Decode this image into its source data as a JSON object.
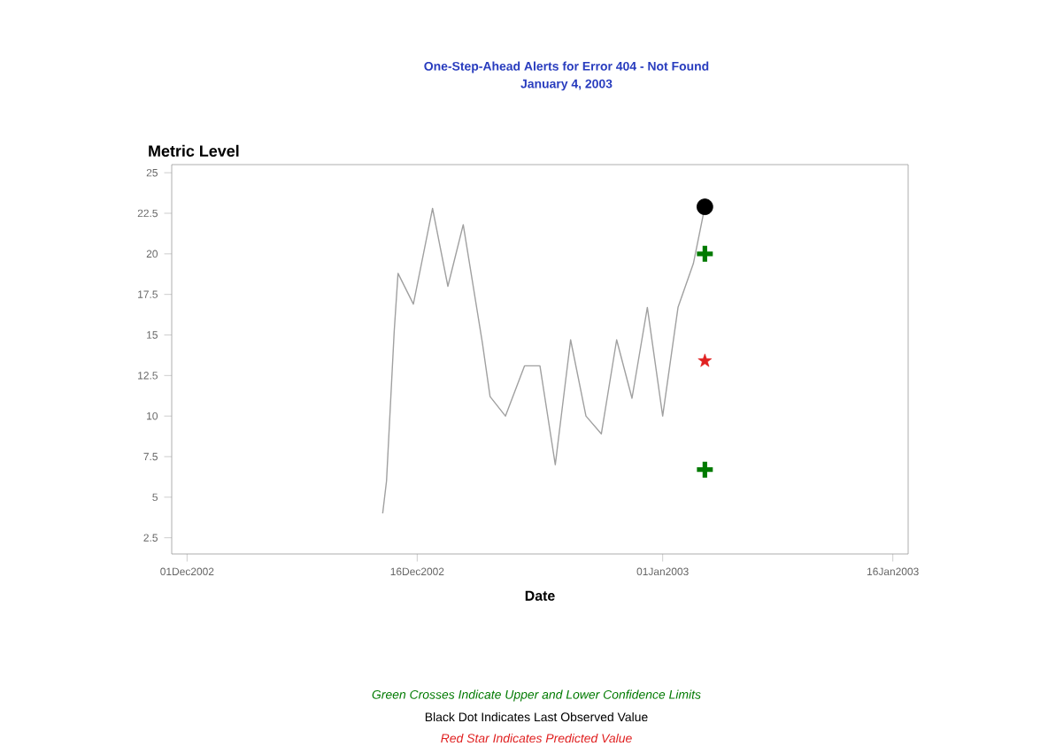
{
  "chart_data": {
    "type": "line",
    "title": "One-Step-Ahead Alerts for Error 404 - Not Found",
    "subtitle": "January 4, 2003",
    "xlabel": "Date",
    "ylabel": "Metric Level",
    "xlim": [
      "2002-11-30",
      "2003-01-17"
    ],
    "xticks": [
      {
        "value": "2002-12-01",
        "label": "01Dec2002"
      },
      {
        "value": "2002-12-16",
        "label": "16Dec2002"
      },
      {
        "value": "2003-01-01",
        "label": "01Jan2003"
      },
      {
        "value": "2003-01-16",
        "label": "16Jan2003"
      }
    ],
    "ylim": [
      1.5,
      25.5
    ],
    "yticks": [
      2.5,
      5,
      7.5,
      10,
      12.5,
      15,
      17.5,
      20,
      22.5,
      25
    ],
    "grid": false,
    "series": [
      {
        "marker": "none",
        "line_style": "solid",
        "color": "#a0a0a0",
        "x": [
          "2002-12-13T18:00",
          "2002-12-14",
          "2002-12-14T12:00",
          "2002-12-14T18:00",
          "2002-12-15T18:00",
          "2002-12-17",
          "2002-12-18",
          "2002-12-19",
          "2002-12-20T06:00",
          "2002-12-20T18:00",
          "2002-12-21T18:00",
          "2002-12-23",
          "2002-12-24",
          "2002-12-25",
          "2002-12-26",
          "2002-12-27",
          "2002-12-28",
          "2002-12-29",
          "2002-12-30",
          "2002-12-31",
          "2003-01-01",
          "2003-01-02",
          "2003-01-03",
          "2003-01-03T18:00"
        ],
        "values": [
          4,
          6,
          15.2,
          18.8,
          16.9,
          22.8,
          18,
          21.8,
          14.5,
          11.2,
          10,
          13.1,
          13.1,
          7,
          14.7,
          10,
          8.9,
          14.7,
          11.1,
          16.7,
          10,
          16.7,
          19.4,
          22.9
        ]
      },
      {
        "type": "scatter",
        "marker": "cross",
        "color": "#007a00",
        "x": [
          "2003-01-03T18:00",
          "2003-01-03T18:00"
        ],
        "values": [
          20,
          6.7
        ]
      },
      {
        "type": "scatter",
        "marker": "circle",
        "color": "#000000",
        "x": [
          "2003-01-03T18:00"
        ],
        "values": [
          22.9
        ]
      },
      {
        "type": "scatter",
        "marker": "star",
        "color": "#e02020",
        "x": [
          "2003-01-03T18:00"
        ],
        "values": [
          13.4
        ]
      }
    ],
    "annotations": [
      "*Green Crosses Indicate Upper and Lower Confidence Limits*",
      "Black Dot Indicates Last Observed Value",
      "*Red Star Indicates Predicted Value*"
    ]
  }
}
